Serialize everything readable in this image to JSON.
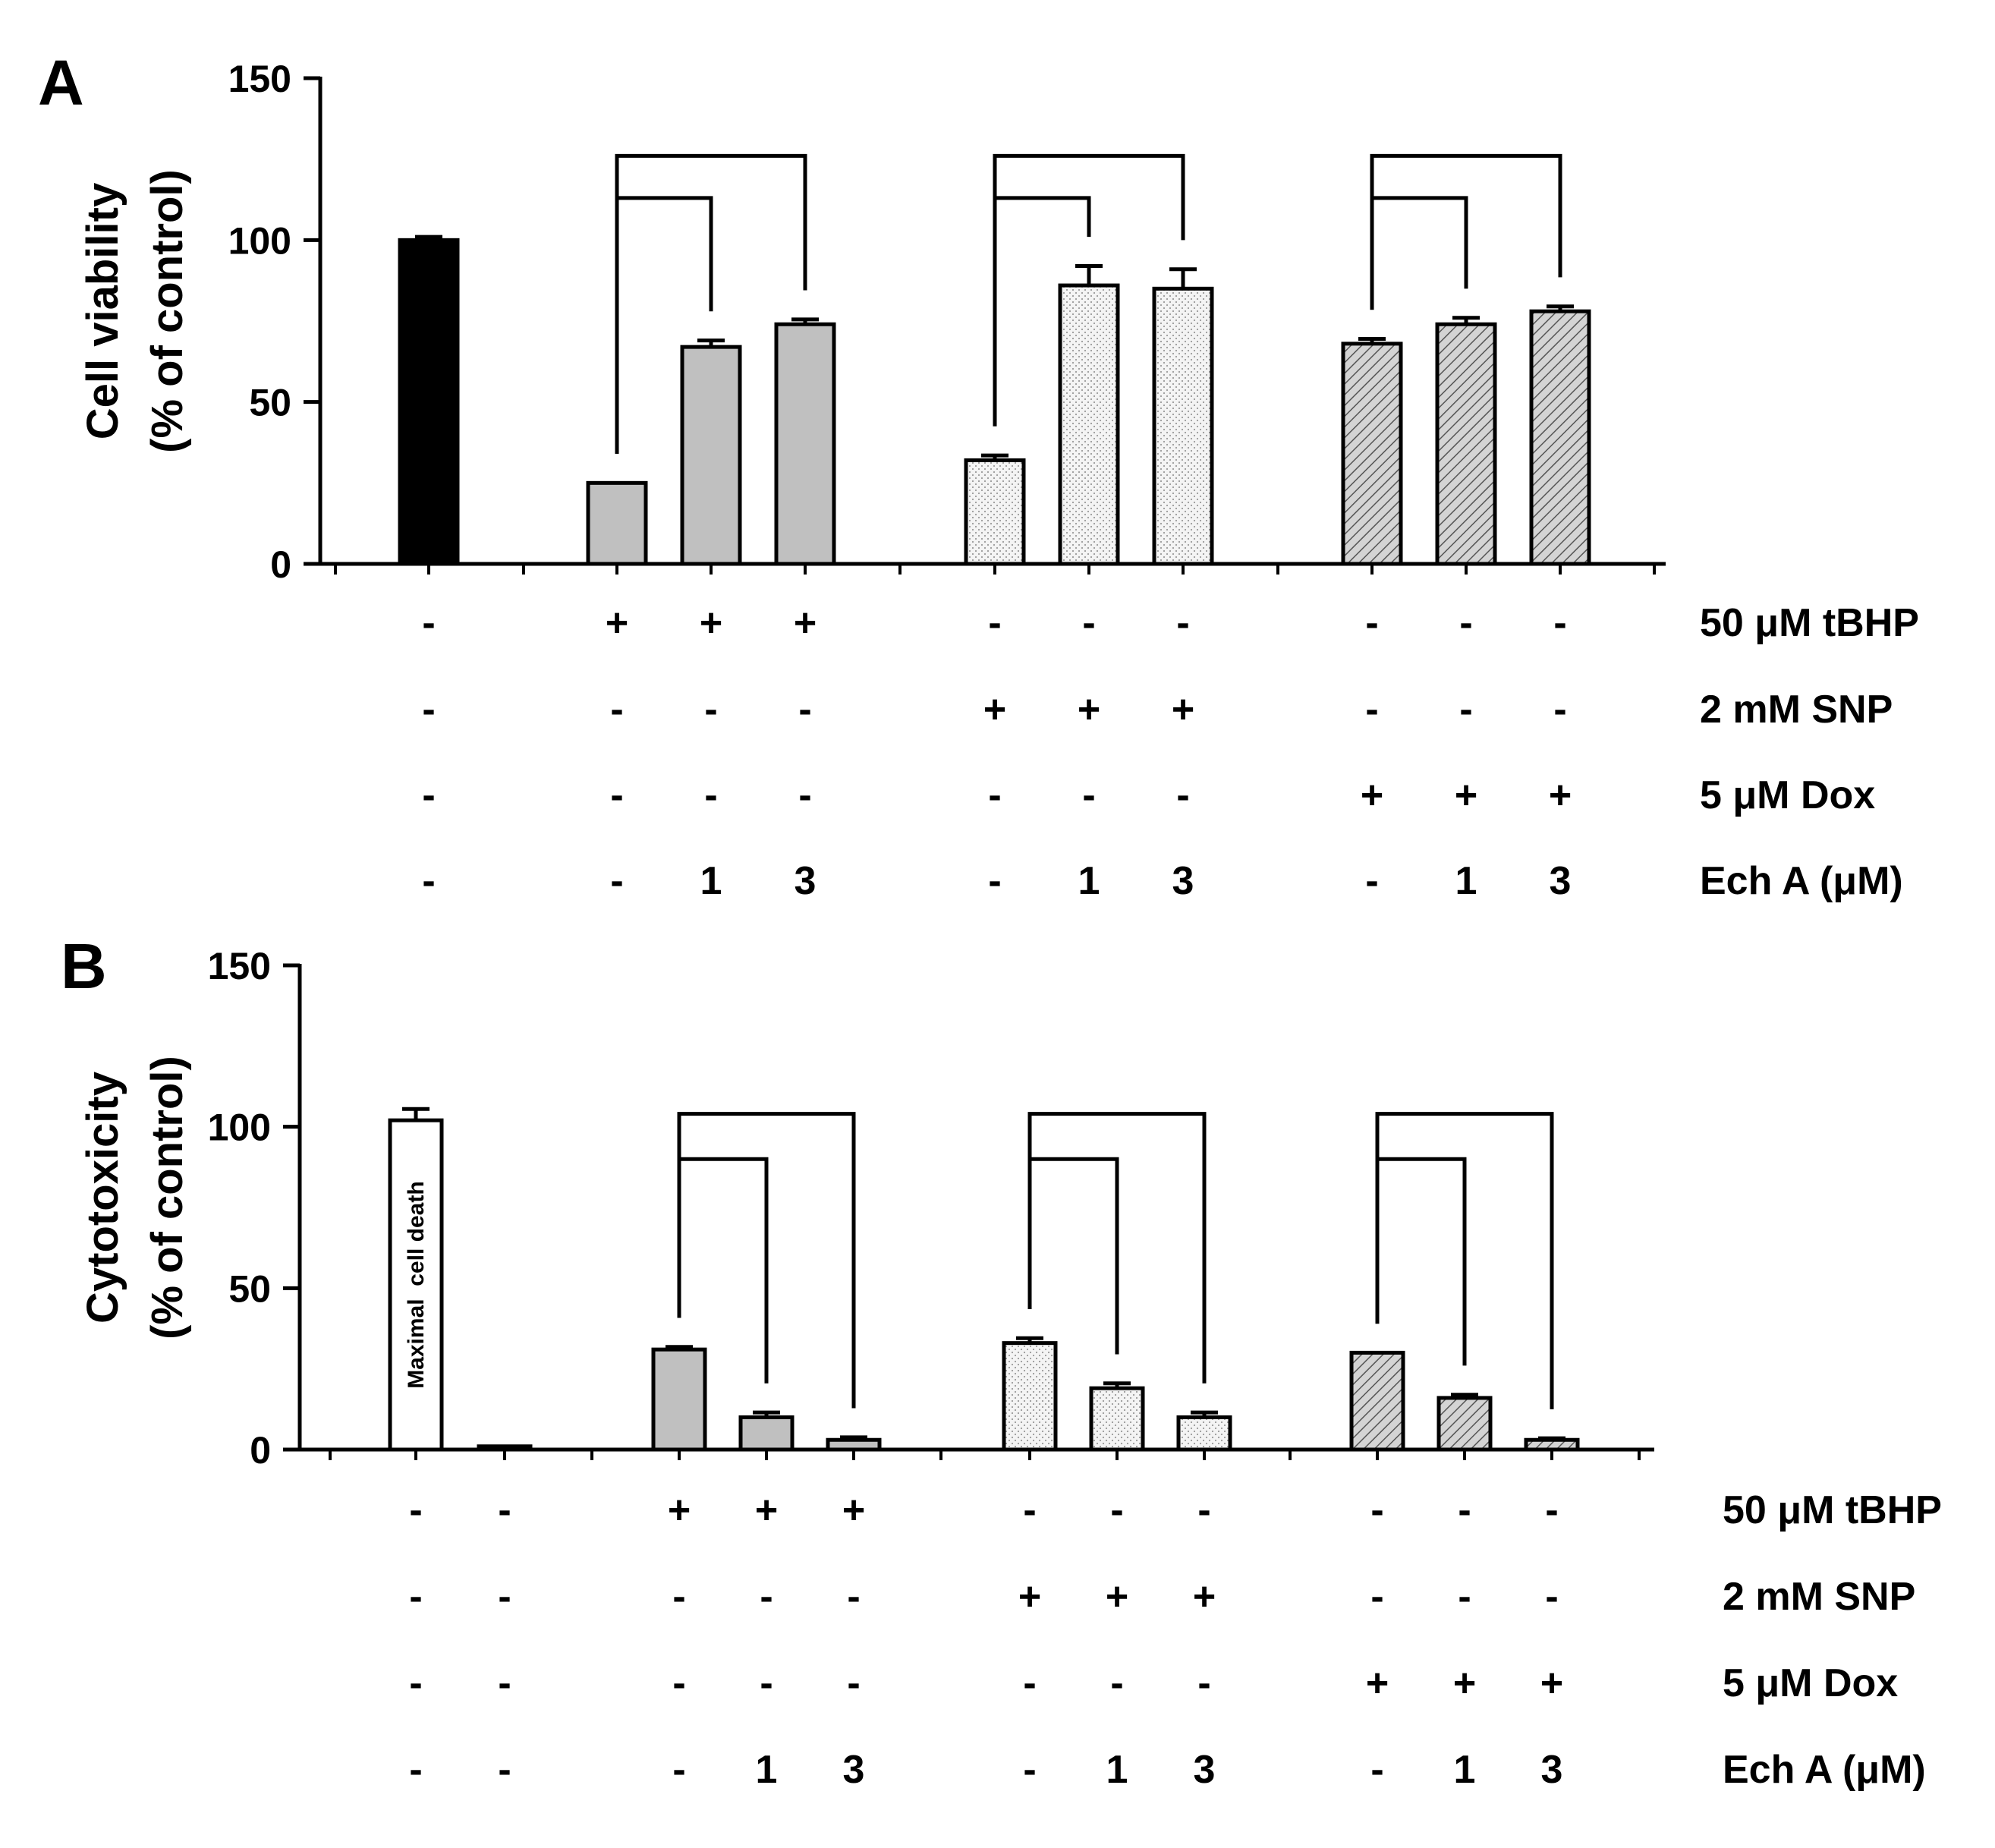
{
  "panel_labels": [
    "A",
    "B"
  ],
  "colors": {
    "control_bar": "#000000",
    "tbhp_bar": "#c0c0c0",
    "snp_bar": "#f4f4f4",
    "snp_stipple": "#9a9a9a",
    "dox_bar": "#d4d4d4",
    "dox_hatch": "#555555",
    "maximal_bar": "#ffffff",
    "axis": "#000000"
  },
  "chart_data": [
    {
      "panel": "A",
      "type": "bar",
      "title": "",
      "ylabel": "Cell viability",
      "ylabel_sub": "(% of control)",
      "xlabel": "",
      "ylim": [
        0,
        150
      ],
      "yticks": [
        "0",
        "50",
        "100",
        "150"
      ],
      "categories": [
        "Control",
        "tBHP",
        "tBHP + Ech A 1",
        "tBHP + Ech A 3",
        "SNP",
        "SNP + Ech A 1",
        "SNP + Ech A 3",
        "Dox",
        "Dox + Ech A 1",
        "Dox + Ech A 3"
      ],
      "values": [
        100,
        25,
        67,
        74,
        32,
        86,
        85,
        68,
        74,
        78
      ],
      "errors": [
        1,
        0,
        2,
        1.5,
        1.5,
        6,
        6,
        1.5,
        2,
        1.5
      ],
      "bar_styles": [
        "control",
        "tbhp",
        "tbhp",
        "tbhp",
        "snp",
        "snp",
        "snp",
        "dox",
        "dox",
        "dox"
      ],
      "bar_labels": [
        "",
        "",
        "",
        "",
        "",
        "",
        "",
        "",
        "",
        ""
      ],
      "brackets": [
        {
          "from": 1,
          "to": 2,
          "level": 113
        },
        {
          "from": 1,
          "to": 3,
          "level": 126
        },
        {
          "from": 4,
          "to": 5,
          "level": 113
        },
        {
          "from": 4,
          "to": 6,
          "level": 126
        },
        {
          "from": 7,
          "to": 8,
          "level": 113
        },
        {
          "from": 7,
          "to": 9,
          "level": 126
        }
      ],
      "treatment_rows": [
        {
          "label": "50 μM tBHP",
          "values": [
            "-",
            "+",
            "+",
            "+",
            "-",
            "-",
            "-",
            "-",
            "-",
            "-"
          ]
        },
        {
          "label": "2 mM SNP",
          "values": [
            "-",
            "-",
            "-",
            "-",
            "+",
            "+",
            "+",
            "-",
            "-",
            "-"
          ]
        },
        {
          "label": "5 μM Dox",
          "values": [
            "-",
            "-",
            "-",
            "-",
            "-",
            "-",
            "-",
            "+",
            "+",
            "+"
          ]
        },
        {
          "label": "Ech A (μM)",
          "values": [
            "-",
            "-",
            "1",
            "3",
            "-",
            "1",
            "3",
            "-",
            "1",
            "3"
          ]
        }
      ]
    },
    {
      "panel": "B",
      "type": "bar",
      "title": "",
      "ylabel": "Cytotoxicity",
      "ylabel_sub": "(% of control)",
      "xlabel": "",
      "ylim": [
        0,
        150
      ],
      "yticks": [
        "0",
        "50",
        "100",
        "150"
      ],
      "categories": [
        "Maximal cell death",
        "Control",
        "tBHP",
        "tBHP + Ech A 1",
        "tBHP + Ech A 3",
        "SNP",
        "SNP + Ech A 1",
        "SNP + Ech A 3",
        "Dox",
        "Dox + Ech A 1",
        "Dox + Ech A 3"
      ],
      "values": [
        102,
        1,
        31,
        10,
        3,
        33,
        19,
        10,
        30,
        16,
        3
      ],
      "errors": [
        3.5,
        0,
        0.8,
        1.5,
        0.8,
        1.5,
        1.5,
        1.5,
        0,
        1,
        0.5
      ],
      "bar_styles": [
        "maximal",
        "control_white",
        "tbhp",
        "tbhp",
        "tbhp",
        "snp",
        "snp",
        "snp",
        "dox",
        "dox",
        "dox"
      ],
      "bar_labels": [
        "Maximal  cell death",
        "",
        "",
        "",
        "",
        "",
        "",
        "",
        "",
        "",
        ""
      ],
      "brackets": [
        {
          "from": 2,
          "to": 3,
          "level": 90
        },
        {
          "from": 2,
          "to": 4,
          "level": 104
        },
        {
          "from": 5,
          "to": 6,
          "level": 90
        },
        {
          "from": 5,
          "to": 7,
          "level": 104
        },
        {
          "from": 8,
          "to": 9,
          "level": 90
        },
        {
          "from": 8,
          "to": 10,
          "level": 104
        }
      ],
      "treatment_rows": [
        {
          "label": "50 μM tBHP",
          "values": [
            "-",
            "-",
            "+",
            "+",
            "+",
            "-",
            "-",
            "-",
            "-",
            "-",
            "-"
          ]
        },
        {
          "label": "2 mM SNP",
          "values": [
            "-",
            "-",
            "-",
            "-",
            "-",
            "+",
            "+",
            "+",
            "-",
            "-",
            "-"
          ]
        },
        {
          "label": "5 μM Dox",
          "values": [
            "-",
            "-",
            "-",
            "-",
            "-",
            "-",
            "-",
            "-",
            "+",
            "+",
            "+"
          ]
        },
        {
          "label": "Ech A (μM)",
          "values": [
            "-",
            "-",
            "-",
            "1",
            "3",
            "-",
            "1",
            "3",
            "-",
            "1",
            "3"
          ]
        }
      ]
    }
  ]
}
